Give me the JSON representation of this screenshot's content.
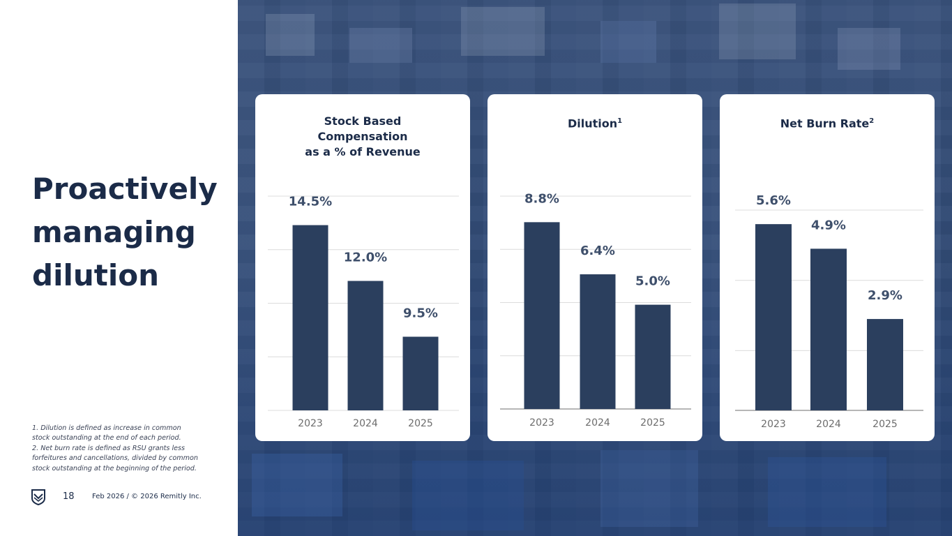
{
  "slide": {
    "title_lines": [
      "Proactively",
      "managing",
      "dilution"
    ],
    "footnotes": [
      "1. Dilution is defined as increase in common",
      "stock outstanding at the end of each period.",
      "2. Net burn rate is defined as RSU grants less",
      "forfeitures and cancellations, divided by common",
      "stock outstanding at the beginning of the period."
    ],
    "page_number": "18",
    "footer": "Feb 2026 / © 2026 Remitly Inc."
  },
  "colors": {
    "bar": "#2b3f5e",
    "label": "#3e4f6b",
    "tick": "#6c6c6c",
    "grid": "#dcdcdc",
    "title": "#1b2b48"
  },
  "chart_data": [
    {
      "type": "bar",
      "title_lines": [
        "Stock Based",
        "Compensation",
        "as a % of Revenue"
      ],
      "title_sup": "",
      "categories": [
        "2023",
        "2024",
        "2025"
      ],
      "values": [
        14.5,
        12.0,
        9.5
      ],
      "data_labels": [
        "14.5%",
        "12.0%",
        "9.5%"
      ],
      "ylim": [
        6.2,
        15.8
      ],
      "grid_step": 2.4,
      "axis_line": false
    },
    {
      "type": "bar",
      "title_lines": [
        "Dilution"
      ],
      "title_sup": "1",
      "categories": [
        "2023",
        "2024",
        "2025"
      ],
      "values": [
        8.8,
        6.4,
        5.0
      ],
      "data_labels": [
        "8.8%",
        "6.4%",
        "5.0%"
      ],
      "ylim": [
        0.2,
        10.0
      ],
      "grid_step": 2.45,
      "axis_line": true
    },
    {
      "type": "bar",
      "title_lines": [
        "Net Burn Rate"
      ],
      "title_sup": "2",
      "categories": [
        "2023",
        "2024",
        "2025"
      ],
      "values": [
        5.6,
        4.9,
        2.9
      ],
      "data_labels": [
        "5.6%",
        "4.9%",
        "2.9%"
      ],
      "ylim": [
        0.3,
        6.0
      ],
      "grid_step": 2.0,
      "axis_line": true
    }
  ]
}
